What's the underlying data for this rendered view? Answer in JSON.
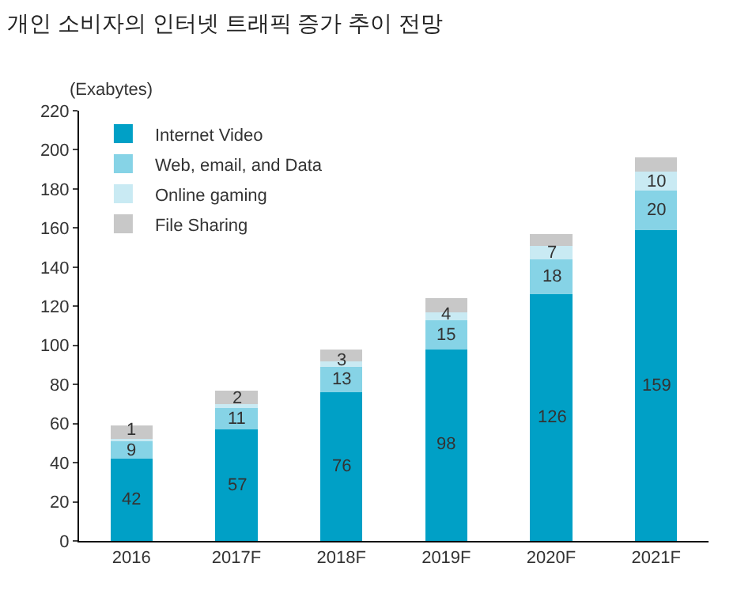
{
  "chart_data": {
    "type": "bar",
    "title": "개인 소비자의 인터넷 트래픽 증가 추이 전망",
    "ylabel": "(Exabytes)",
    "stacked": true,
    "categories": [
      "2016",
      "2017F",
      "2018F",
      "2019F",
      "2020F",
      "2021F"
    ],
    "series": [
      {
        "name": "Internet Video",
        "color": "#00a0c6",
        "values": [
          42,
          57,
          76,
          98,
          126,
          159
        ],
        "value_labels": [
          "42",
          "57",
          "76",
          "98",
          "126",
          "159"
        ]
      },
      {
        "name": "Web, email, and Data",
        "color": "#86d3e6",
        "values": [
          9,
          11,
          13,
          15,
          18,
          20
        ],
        "value_labels": [
          "9",
          "11",
          "13",
          "15",
          "18",
          "20"
        ]
      },
      {
        "name": "Online gaming",
        "color": "#c9eaf3",
        "values": [
          1,
          2,
          3,
          4,
          7,
          10
        ],
        "value_labels": [
          "1",
          "2",
          "3",
          "4",
          "7",
          "10"
        ]
      },
      {
        "name": "File Sharing",
        "color": "#c8c8c8",
        "values": [
          7,
          7,
          6,
          7,
          6,
          7
        ],
        "value_labels": [
          null,
          null,
          null,
          null,
          null,
          null
        ]
      }
    ],
    "ylim": [
      0,
      220
    ],
    "yticks": [
      0,
      20,
      40,
      60,
      80,
      100,
      120,
      140,
      160,
      180,
      200,
      220
    ],
    "legend": "top left"
  }
}
